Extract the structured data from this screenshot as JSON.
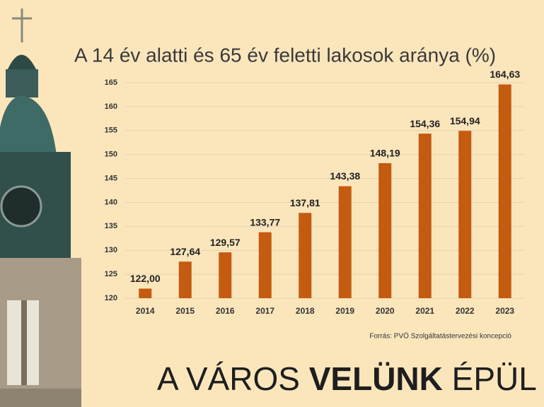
{
  "chart_data": {
    "type": "bar",
    "title": "A 14 év alatti és 65 év feletti lakosok aránya (%)",
    "categories": [
      "2014",
      "2015",
      "2016",
      "2017",
      "2018",
      "2019",
      "2020",
      "2021",
      "2022",
      "2023"
    ],
    "values": [
      122.0,
      127.64,
      129.57,
      133.77,
      137.81,
      143.38,
      148.19,
      154.36,
      154.94,
      164.63
    ],
    "value_labels": [
      "122,00",
      "127,64",
      "129,57",
      "133,77",
      "137,81",
      "143,38",
      "148,19",
      "154,36",
      "154,94",
      "164,63"
    ],
    "color": "#c55a11",
    "ylim": [
      120,
      165
    ],
    "yticks": [
      120,
      125,
      130,
      135,
      140,
      145,
      150,
      155,
      160,
      165
    ],
    "grid": true,
    "source": "Forrás: PVÖ Szolgáltatástervezési koncepció"
  },
  "footer": {
    "parts": [
      "A VÁROS",
      "VELÜNK",
      "ÉPÜL"
    ]
  }
}
